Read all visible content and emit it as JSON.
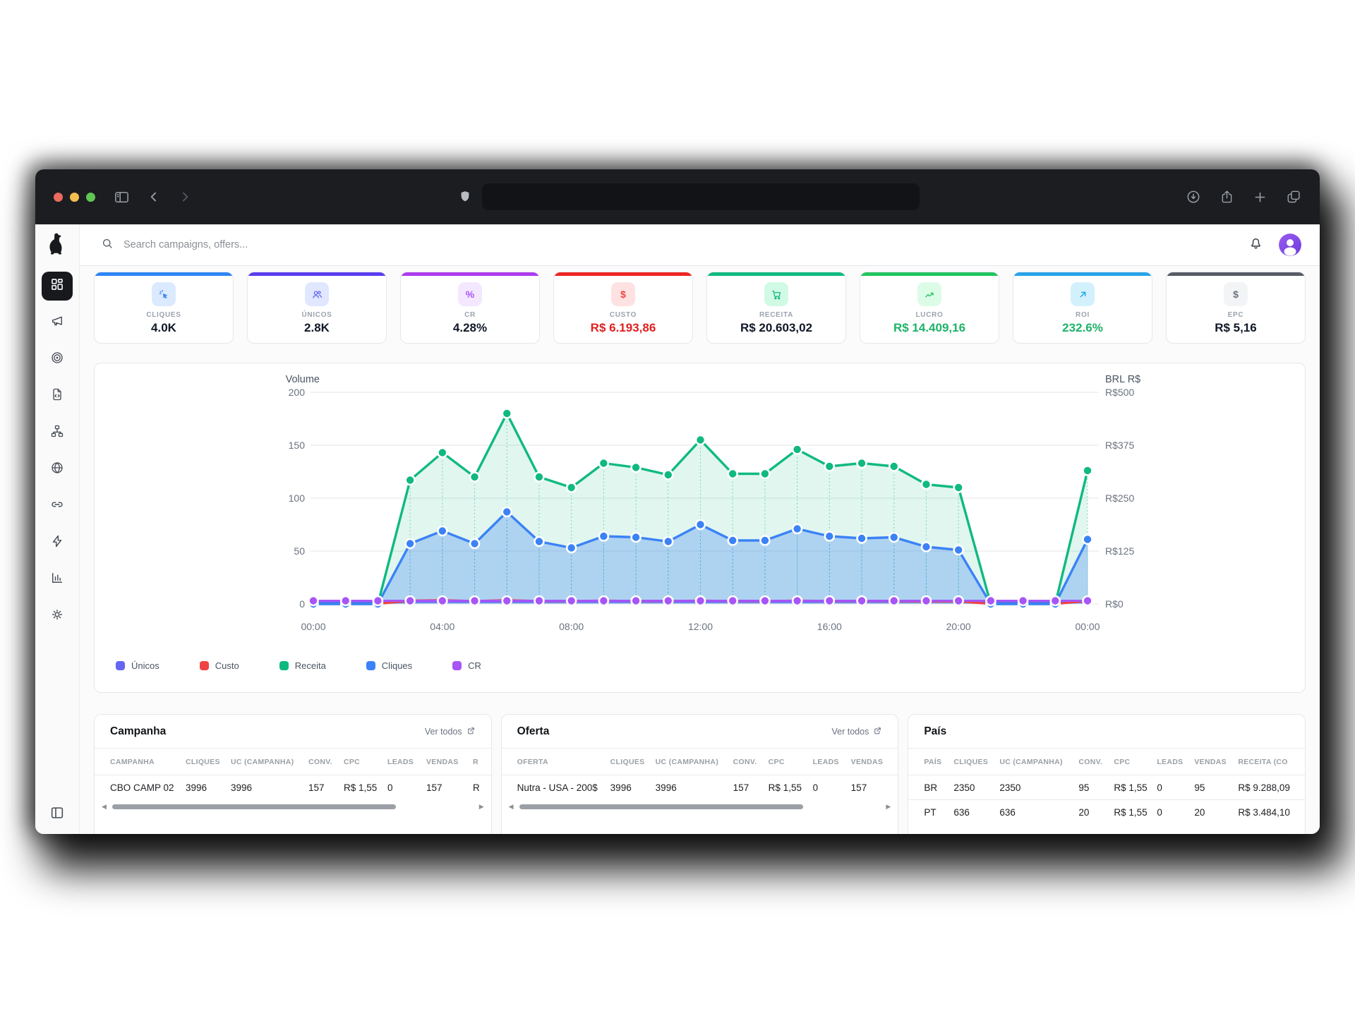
{
  "browser": {
    "traffic_light_colors": [
      "#ed6a5e",
      "#f4bf4f",
      "#61c554"
    ],
    "url_value": ""
  },
  "header": {
    "search_placeholder": "Search campaigns, offers..."
  },
  "kpis": [
    {
      "label": "CLIQUES",
      "value": "4.0K",
      "accent": "#2e86f5",
      "icon": "cursor-click",
      "icon_color": "#3b82f6",
      "icon_bg": "#dbeafe",
      "value_color": "#101828"
    },
    {
      "label": "ÚNICOS",
      "value": "2.8K",
      "accent": "#5a3df0",
      "icon": "users",
      "icon_color": "#6366f1",
      "icon_bg": "#e0e7ff",
      "value_color": "#101828"
    },
    {
      "label": "CR",
      "value": "4.28%",
      "accent": "#ad3bee",
      "icon": "percent",
      "icon_color": "#a855f7",
      "icon_bg": "#f3e8ff",
      "value_color": "#101828"
    },
    {
      "label": "CUSTO",
      "value": "R$ 6.193,86",
      "accent": "#ee2424",
      "icon": "dollar",
      "icon_color": "#ef4444",
      "icon_bg": "#fee2e2",
      "value_color": "#e02020"
    },
    {
      "label": "RECEITA",
      "value": "R$ 20.603,02",
      "accent": "#10b981",
      "icon": "cart",
      "icon_color": "#10b981",
      "icon_bg": "#d1fae5",
      "value_color": "#101828"
    },
    {
      "label": "LUCRO",
      "value": "R$ 14.409,16",
      "accent": "#22c55e",
      "icon": "trend-up",
      "icon_color": "#22c55e",
      "icon_bg": "#dcfce7",
      "value_color": "#1db368"
    },
    {
      "label": "ROI",
      "value": "232.6%",
      "accent": "#27a4ea",
      "icon": "arrow-up-right",
      "icon_color": "#0ea5e9",
      "icon_bg": "#d3f1fd",
      "value_color": "#1db368"
    },
    {
      "label": "EPC",
      "value": "R$ 5,16",
      "accent": "#575c66",
      "icon": "dollar",
      "icon_color": "#6b7280",
      "icon_bg": "#f3f4f6",
      "value_color": "#101828"
    }
  ],
  "chart_data": {
    "type": "area",
    "x": [
      "00:00",
      "01:00",
      "02:00",
      "03:00",
      "04:00",
      "05:00",
      "06:00",
      "07:00",
      "08:00",
      "09:00",
      "10:00",
      "11:00",
      "12:00",
      "13:00",
      "14:00",
      "15:00",
      "16:00",
      "17:00",
      "18:00",
      "19:00",
      "20:00",
      "21:00",
      "22:00",
      "23:00",
      "00:00"
    ],
    "x_tick_indices": [
      0,
      4,
      8,
      12,
      16,
      20,
      24
    ],
    "left_axis": {
      "title": "Volume",
      "ticks": [
        "0",
        "50",
        "100",
        "150",
        "200"
      ],
      "tick_values": [
        0,
        50,
        100,
        150,
        200
      ],
      "max": 200
    },
    "right_axis": {
      "title": "BRL R$",
      "ticks": [
        "R$0",
        "R$125",
        "R$250",
        "R$375",
        "R$500"
      ],
      "tick_values": [
        0,
        125,
        250,
        375,
        500
      ],
      "max": 500
    },
    "grid": "horizontal",
    "legend_position": "bottom-left",
    "series": [
      {
        "name": "Únicos",
        "color": "#6366f1",
        "axis": "left",
        "fill": false,
        "dots": false,
        "values": [
          1,
          1,
          1,
          2,
          2,
          2,
          2,
          2,
          2,
          2,
          2,
          2,
          2,
          2,
          2,
          2,
          2,
          2,
          2,
          2,
          2,
          1,
          1,
          1,
          2
        ]
      },
      {
        "name": "Custo",
        "color": "#ef4444",
        "axis": "right",
        "fill": false,
        "dots": false,
        "values": [
          0,
          0,
          0,
          8,
          9,
          7,
          9,
          7,
          7,
          8,
          7,
          7,
          8,
          7,
          7,
          8,
          7,
          7,
          7,
          6,
          6,
          0,
          0,
          0,
          7
        ]
      },
      {
        "name": "Receita",
        "color": "#10b981",
        "axis": "left",
        "fill": true,
        "dots": true,
        "values": [
          0,
          0,
          0,
          117,
          143,
          120,
          180,
          120,
          110,
          133,
          129,
          122,
          155,
          123,
          123,
          146,
          130,
          133,
          130,
          113,
          110,
          0,
          0,
          0,
          126
        ]
      },
      {
        "name": "Cliques",
        "color": "#3b82f6",
        "axis": "left",
        "fill": true,
        "dots": true,
        "values": [
          0,
          0,
          0,
          57,
          69,
          57,
          87,
          59,
          53,
          64,
          63,
          59,
          75,
          60,
          60,
          71,
          64,
          62,
          63,
          54,
          51,
          0,
          0,
          0,
          61
        ]
      },
      {
        "name": "CR",
        "color": "#a855f7",
        "axis": "left",
        "fill": false,
        "dots": true,
        "values": [
          3,
          3,
          3,
          3,
          3,
          3,
          3,
          3,
          3,
          3,
          3,
          3,
          3,
          3,
          3,
          3,
          3,
          3,
          3,
          3,
          3,
          3,
          3,
          3,
          3
        ]
      }
    ]
  },
  "tables": [
    {
      "title": "Campanha",
      "link_label": "Ver todos",
      "columns": [
        "CAMPANHA",
        "CLIQUES",
        "UC (CAMPANHA)",
        "CONV.",
        "CPC",
        "LEADS",
        "VENDAS",
        "R"
      ],
      "rows": [
        [
          "CBO CAMP 02",
          "3996",
          "3996",
          "157",
          "R$ 1,55",
          "0",
          "157",
          "R"
        ]
      ],
      "scrollbar": true
    },
    {
      "title": "Oferta",
      "link_label": "Ver todos",
      "columns": [
        "OFERTA",
        "CLIQUES",
        "UC (CAMPANHA)",
        "CONV.",
        "CPC",
        "LEADS",
        "VENDAS"
      ],
      "rows": [
        [
          "Nutra - USA - 200$",
          "3996",
          "3996",
          "157",
          "R$ 1,55",
          "0",
          "157"
        ]
      ],
      "scrollbar": true
    },
    {
      "title": "País",
      "link_label": null,
      "columns": [
        "PAÍS",
        "CLIQUES",
        "UC (CAMPANHA)",
        "CONV.",
        "CPC",
        "LEADS",
        "VENDAS",
        "RECEITA (CO"
      ],
      "rows": [
        [
          "BR",
          "2350",
          "2350",
          "95",
          "R$ 1,55",
          "0",
          "95",
          "R$ 9.288,09"
        ],
        [
          "PT",
          "636",
          "636",
          "20",
          "R$ 1,55",
          "0",
          "20",
          "R$ 3.484,10"
        ]
      ],
      "scrollbar": false
    }
  ]
}
